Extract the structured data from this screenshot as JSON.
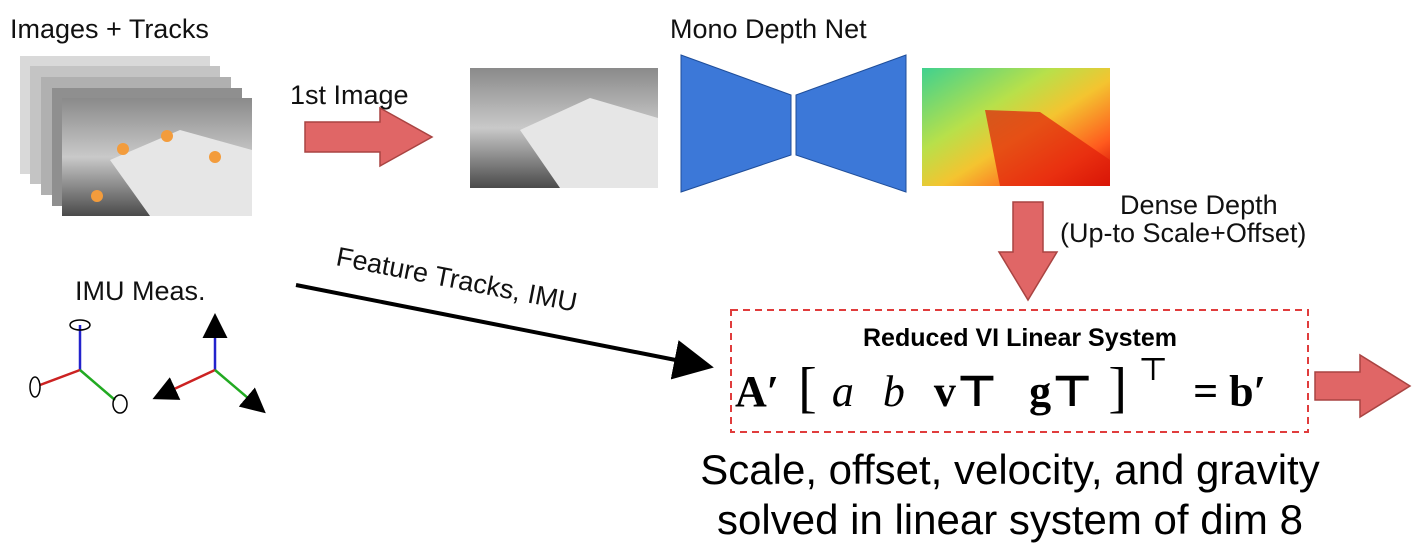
{
  "labels": {
    "images_tracks": "Images + Tracks",
    "first_image": "1st Image",
    "mono_depth_net": "Mono Depth Net",
    "dense_depth": "Dense Depth",
    "up_to_scale": "(Up-to Scale+Offset)",
    "imu_meas": "IMU Meas.",
    "feature_tracks": "Feature Tracks, IMU"
  },
  "system": {
    "title": "Reduced VI Linear System",
    "equation": {
      "lhs": "A′",
      "vector": [
        "a",
        "b",
        "v⊤",
        "g⊤"
      ],
      "transpose": "⊤",
      "rhs": "= b′"
    }
  },
  "caption": [
    "Scale, offset, velocity, and gravity",
    "solved in linear system of dim 8"
  ]
}
